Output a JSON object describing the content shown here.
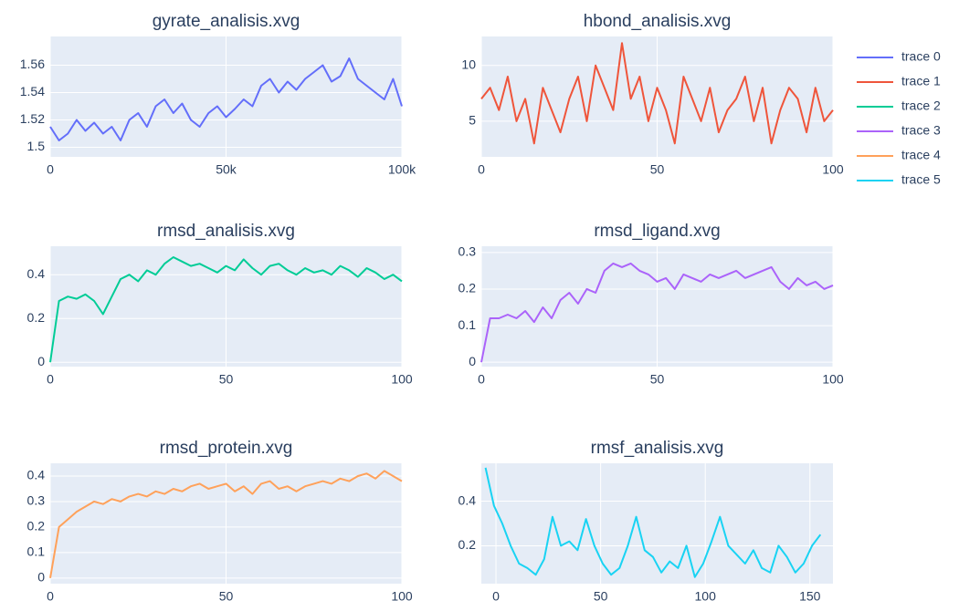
{
  "chart_data": [
    {
      "type": "line",
      "title": "gyrate_analisis.xvg",
      "x": [
        0,
        2500,
        5000,
        7500,
        10000,
        12500,
        15000,
        17500,
        20000,
        22500,
        25000,
        27500,
        30000,
        32500,
        35000,
        37500,
        40000,
        42500,
        45000,
        47500,
        50000,
        52500,
        55000,
        57500,
        60000,
        62500,
        65000,
        67500,
        70000,
        72500,
        75000,
        77500,
        80000,
        82500,
        85000,
        87500,
        90000,
        92500,
        95000,
        97500,
        100000
      ],
      "series": [
        {
          "name": "trace 0",
          "color": "#636efa",
          "values": [
            1.515,
            1.505,
            1.51,
            1.52,
            1.512,
            1.518,
            1.51,
            1.515,
            1.505,
            1.52,
            1.525,
            1.515,
            1.53,
            1.535,
            1.525,
            1.532,
            1.52,
            1.515,
            1.525,
            1.53,
            1.522,
            1.528,
            1.535,
            1.53,
            1.545,
            1.55,
            1.54,
            1.548,
            1.542,
            1.55,
            1.555,
            1.56,
            1.548,
            1.552,
            1.565,
            1.55,
            1.545,
            1.54,
            1.535,
            1.55,
            1.53
          ]
        }
      ],
      "xlim": [
        0,
        100000
      ],
      "xticks": [
        0,
        {
          "value": 50000,
          "label": "50k"
        },
        {
          "value": 100000,
          "label": "100k"
        }
      ],
      "ylim": [
        1.493,
        1.581
      ],
      "yticks": [
        1.5,
        1.52,
        1.54,
        1.56
      ],
      "grid": true
    },
    {
      "type": "line",
      "title": "hbond_analisis.xvg",
      "x": [
        0,
        2.5,
        5,
        7.5,
        10,
        12.5,
        15,
        17.5,
        20,
        22.5,
        25,
        27.5,
        30,
        32.5,
        35,
        37.5,
        40,
        42.5,
        45,
        47.5,
        50,
        52.5,
        55,
        57.5,
        60,
        62.5,
        65,
        67.5,
        70,
        72.5,
        75,
        77.5,
        80,
        82.5,
        85,
        87.5,
        90,
        92.5,
        95,
        97.5,
        100
      ],
      "series": [
        {
          "name": "trace 1",
          "color": "#EF553B",
          "values": [
            7,
            8,
            6,
            9,
            5,
            7,
            3,
            8,
            6,
            4,
            7,
            9,
            5,
            10,
            8,
            6,
            12,
            7,
            9,
            5,
            8,
            6,
            3,
            9,
            7,
            5,
            8,
            4,
            6,
            7,
            9,
            5,
            8,
            3,
            6,
            8,
            7,
            4,
            8,
            5,
            6
          ]
        }
      ],
      "xlim": [
        0,
        100
      ],
      "xticks": [
        0,
        50,
        100
      ],
      "ylim": [
        1.8,
        12.6
      ],
      "yticks": [
        5,
        10
      ],
      "grid": true
    },
    {
      "type": "line",
      "title": "rmsd_analisis.xvg",
      "x": [
        0,
        2.5,
        5,
        7.5,
        10,
        12.5,
        15,
        17.5,
        20,
        22.5,
        25,
        27.5,
        30,
        32.5,
        35,
        37.5,
        40,
        42.5,
        45,
        47.5,
        50,
        52.5,
        55,
        57.5,
        60,
        62.5,
        65,
        67.5,
        70,
        72.5,
        75,
        77.5,
        80,
        82.5,
        85,
        87.5,
        90,
        92.5,
        95,
        97.5,
        100
      ],
      "series": [
        {
          "name": "trace 2",
          "color": "#00cc96",
          "values": [
            0,
            0.28,
            0.3,
            0.29,
            0.31,
            0.28,
            0.22,
            0.3,
            0.38,
            0.4,
            0.37,
            0.42,
            0.4,
            0.45,
            0.48,
            0.46,
            0.44,
            0.45,
            0.43,
            0.41,
            0.44,
            0.42,
            0.47,
            0.43,
            0.4,
            0.44,
            0.45,
            0.42,
            0.4,
            0.43,
            0.41,
            0.42,
            0.4,
            0.44,
            0.42,
            0.39,
            0.43,
            0.41,
            0.38,
            0.4,
            0.37
          ]
        }
      ],
      "xlim": [
        0,
        100
      ],
      "xticks": [
        0,
        50,
        100
      ],
      "ylim": [
        -0.02,
        0.53
      ],
      "yticks": [
        0,
        0.2,
        0.4
      ],
      "grid": true
    },
    {
      "type": "line",
      "title": "rmsd_ligand.xvg",
      "x": [
        0,
        2.5,
        5,
        7.5,
        10,
        12.5,
        15,
        17.5,
        20,
        22.5,
        25,
        27.5,
        30,
        32.5,
        35,
        37.5,
        40,
        42.5,
        45,
        47.5,
        50,
        52.5,
        55,
        57.5,
        60,
        62.5,
        65,
        67.5,
        70,
        72.5,
        75,
        77.5,
        80,
        82.5,
        85,
        87.5,
        90,
        92.5,
        95,
        97.5,
        100
      ],
      "series": [
        {
          "name": "trace 3",
          "color": "#ab63fa",
          "values": [
            0,
            0.12,
            0.12,
            0.13,
            0.12,
            0.14,
            0.11,
            0.15,
            0.12,
            0.17,
            0.19,
            0.16,
            0.2,
            0.19,
            0.25,
            0.27,
            0.26,
            0.27,
            0.25,
            0.24,
            0.22,
            0.23,
            0.2,
            0.24,
            0.23,
            0.22,
            0.24,
            0.23,
            0.24,
            0.25,
            0.23,
            0.24,
            0.25,
            0.26,
            0.22,
            0.2,
            0.23,
            0.21,
            0.22,
            0.2,
            0.21
          ]
        }
      ],
      "xlim": [
        0,
        100
      ],
      "xticks": [
        0,
        50,
        100
      ],
      "ylim": [
        -0.012,
        0.317
      ],
      "yticks": [
        0,
        0.1,
        0.2,
        0.3
      ],
      "grid": true
    },
    {
      "type": "line",
      "title": "rmsd_protein.xvg",
      "x": [
        0,
        2.5,
        5,
        7.5,
        10,
        12.5,
        15,
        17.5,
        20,
        22.5,
        25,
        27.5,
        30,
        32.5,
        35,
        37.5,
        40,
        42.5,
        45,
        47.5,
        50,
        52.5,
        55,
        57.5,
        60,
        62.5,
        65,
        67.5,
        70,
        72.5,
        75,
        77.5,
        80,
        82.5,
        85,
        87.5,
        90,
        92.5,
        95,
        97.5,
        100
      ],
      "series": [
        {
          "name": "trace 4",
          "color": "#FFA15A",
          "values": [
            0,
            0.2,
            0.23,
            0.26,
            0.28,
            0.3,
            0.29,
            0.31,
            0.3,
            0.32,
            0.33,
            0.32,
            0.34,
            0.33,
            0.35,
            0.34,
            0.36,
            0.37,
            0.35,
            0.36,
            0.37,
            0.34,
            0.36,
            0.33,
            0.37,
            0.38,
            0.35,
            0.36,
            0.34,
            0.36,
            0.37,
            0.38,
            0.37,
            0.39,
            0.38,
            0.4,
            0.41,
            0.39,
            0.42,
            0.4,
            0.38
          ]
        }
      ],
      "xlim": [
        0,
        100
      ],
      "xticks": [
        0,
        50,
        100
      ],
      "ylim": [
        -0.022,
        0.45
      ],
      "yticks": [
        0,
        0.1,
        0.2,
        0.3,
        0.4
      ],
      "grid": true
    },
    {
      "type": "line",
      "title": "rmsf_analisis.xvg",
      "x": [
        -5,
        -1,
        3,
        7,
        11,
        15,
        19,
        23,
        27,
        31,
        35,
        39,
        43,
        47,
        51,
        55,
        59,
        63,
        67,
        71,
        75,
        79,
        83,
        87,
        91,
        95,
        99,
        103,
        107,
        111,
        115,
        119,
        123,
        127,
        131,
        135,
        139,
        143,
        147,
        151,
        155
      ],
      "series": [
        {
          "name": "trace 5",
          "color": "#19d3f3",
          "values": [
            0.55,
            0.38,
            0.3,
            0.2,
            0.12,
            0.1,
            0.07,
            0.14,
            0.33,
            0.2,
            0.22,
            0.18,
            0.32,
            0.2,
            0.12,
            0.07,
            0.1,
            0.2,
            0.33,
            0.18,
            0.15,
            0.08,
            0.13,
            0.1,
            0.2,
            0.06,
            0.12,
            0.22,
            0.33,
            0.2,
            0.16,
            0.12,
            0.18,
            0.1,
            0.08,
            0.2,
            0.15,
            0.08,
            0.12,
            0.2,
            0.25
          ]
        }
      ],
      "xlim": [
        -7,
        161
      ],
      "xticks": [
        0,
        50,
        100,
        150
      ],
      "ylim": [
        0.03,
        0.57
      ],
      "yticks": [
        0.2,
        0.4
      ],
      "grid": true
    }
  ]
}
